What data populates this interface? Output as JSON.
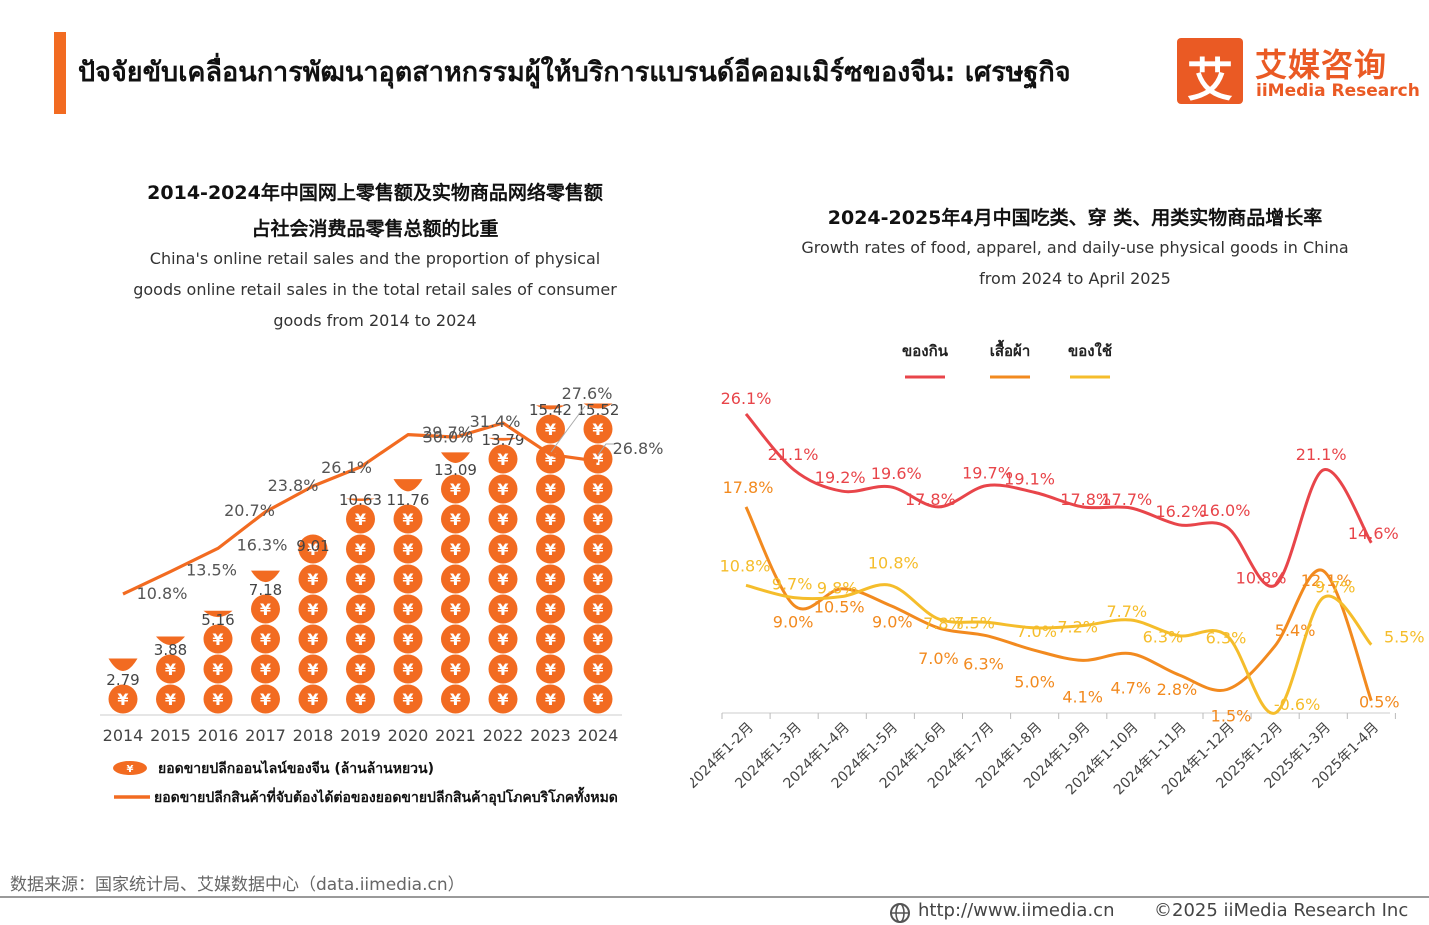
{
  "header": {
    "title": "ปัจจัยขับเคลื่อนการพัฒนาอุตสาหกรรมผู้ให้บริการแบรนด์อีคอมเมิร์ซของจีน: เศรษฐกิจ",
    "accent_color": "#f26b21"
  },
  "logo": {
    "mark": "艾",
    "cn": "艾媒咨询",
    "en": "iiMedia Research",
    "color": "#ea5a24"
  },
  "left_chart": {
    "title_cn_1": "2014-2024年中国网上零售额及实物商品网络零售额",
    "title_cn_2": "占社会消费品零售总额的比重",
    "title_en_1": "China's online retail sales and the proportion of physical",
    "title_en_2": "goods online retail sales in the total retail sales of consumer",
    "title_en_3": "goods from 2014 to 2024",
    "legend_coins": "ยอดขายปลีกออนไลน์ของจีน (ล้านล้านหยวน)",
    "legend_line": "ยอดขายปลีกสินค้าที่จับต้องได้ต่อของยอดขายปลีกสินค้าอุปโภคบริโภคทั้งหมด"
  },
  "right_chart": {
    "title_cn": "2024-2025年4月中国吃类、穿 类、用类实物商品增长率",
    "title_en_1": "Growth rates of food, apparel, and daily-use physical goods in China",
    "title_en_2": "from 2024 to  April 2025"
  },
  "chart_data": [
    {
      "type": "bar",
      "categories": [
        "2014",
        "2015",
        "2016",
        "2017",
        "2018",
        "2019",
        "2020",
        "2021",
        "2022",
        "2023",
        "2024"
      ],
      "series": [
        {
          "name": "ยอดขายปลีกออนไลน์ของจีน (ล้านล้านหยวน)",
          "type": "bar",
          "values": [
            2.79,
            3.88,
            5.16,
            7.18,
            9.01,
            10.63,
            11.76,
            13.09,
            13.79,
            15.42,
            15.52
          ],
          "color": "#f26b21"
        },
        {
          "name": "ยอดขายปลีกสินค้าที่จับต้องได้ต่อของยอดขายปลีกสินค้าอุปโภคบริโภคทั้งหมด",
          "type": "line",
          "values": [
            10.8,
            13.5,
            16.3,
            20.7,
            23.8,
            26.1,
            30.0,
            29.7,
            31.4,
            27.6,
            26.8
          ],
          "color": "#f26b21"
        }
      ],
      "bar_labels": [
        "2.79",
        "3.88",
        "5.16",
        "7.18",
        "9.01",
        "10.63",
        "11.76",
        "13.09",
        "13.79",
        "15.42",
        "15.52"
      ],
      "line_labels": [
        "10.8%",
        "13.5%",
        "16.3%",
        "20.7%",
        "23.8%",
        "26.1%",
        "30.0%",
        "29.7%",
        "31.4%",
        "27.6%",
        "26.8%"
      ],
      "coin_symbol": "¥"
    },
    {
      "type": "line",
      "categories": [
        "2024年1-2月",
        "2024年1-3月",
        "2024年1-4月",
        "2024年1-5月",
        "2024年1-6月",
        "2024年1-7月",
        "2024年1-8月",
        "2024年1-9月",
        "2024年1-10月",
        "2024年1-11月",
        "2024年1-12月",
        "2025年1-2月",
        "2025年1-3月",
        "2025年1-4月"
      ],
      "series": [
        {
          "name": "ของกิน",
          "color": "#e8454a",
          "values": [
            26.1,
            21.1,
            19.2,
            19.6,
            17.8,
            19.7,
            19.1,
            17.8,
            17.7,
            16.2,
            16.0,
            10.8,
            21.1,
            14.6
          ],
          "labels": [
            "26.1%",
            "21.1%",
            "19.2%",
            "19.6%",
            "17.8%",
            "19.7%",
            "19.1%",
            "17.8%",
            "17.7%",
            "16.2%",
            "16.0%",
            "10.8%",
            "21.1%",
            "14.6%"
          ]
        },
        {
          "name": "เสื้อผ้า",
          "color": "#f28a1f",
          "values": [
            17.8,
            9.0,
            10.5,
            9.0,
            7.0,
            6.3,
            5.0,
            4.1,
            4.7,
            2.8,
            1.5,
            5.4,
            12.1,
            0.5
          ],
          "labels": [
            "17.8%",
            "9.0%",
            "10.5%",
            "9.0%",
            "7.0%",
            "6.3%",
            "5.0%",
            "4.1%",
            "4.7%",
            "2.8%",
            "1.5%",
            "5.4%",
            "12.1%",
            "0.5%"
          ]
        },
        {
          "name": "ของใช้",
          "color": "#f5bd2b",
          "values": [
            10.8,
            9.7,
            9.8,
            10.8,
            7.8,
            7.5,
            7.0,
            7.2,
            7.7,
            6.3,
            6.3,
            -0.6,
            9.7,
            5.5
          ],
          "labels": [
            "10.8%",
            "9.7%",
            "9.8%",
            "10.8%",
            "7.8%",
            "7.5%",
            "7.0%",
            "7.2%",
            "7.7%",
            "6.3%",
            "6.3%",
            "-0.6%",
            "9.7%",
            "5.5%"
          ]
        }
      ]
    }
  ],
  "footer": {
    "source": "数据来源：国家统计局、艾媒数据中心（data.iimedia.cn）",
    "url": "http://www.iimedia.cn",
    "copyright": "©2025  iiMedia Research  Inc"
  }
}
